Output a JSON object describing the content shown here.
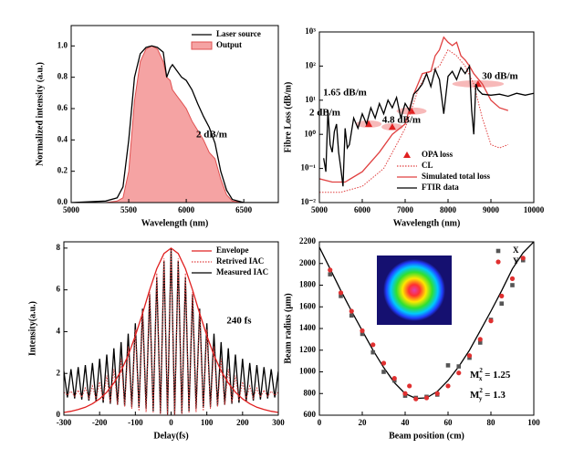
{
  "chart_data": [
    {
      "type": "line",
      "xlabel": "Wavelength (nm)",
      "ylabel": "Normalized intensity (a.u.)",
      "xlim": [
        5000,
        6800
      ],
      "ylim": [
        0,
        1.13
      ],
      "xticks": [
        5000,
        5500,
        6000,
        6500
      ],
      "yticks": [
        {
          "value": 0,
          "label": "0.0"
        },
        0.2,
        0.4,
        0.6,
        0.8,
        {
          "value": 1,
          "label": "1.0"
        }
      ],
      "legend": "upper right",
      "series": [
        {
          "name": "Output",
          "color": "#e05050",
          "style": "area",
          "x": [
            5000,
            5300,
            5400,
            5450,
            5500,
            5550,
            5600,
            5650,
            5700,
            5750,
            5800,
            5830,
            5860,
            5880,
            5920,
            5960,
            6000,
            6050,
            6100,
            6150,
            6200,
            6250,
            6300,
            6350,
            6400,
            6500,
            6800
          ],
          "values": [
            0,
            0,
            0.01,
            0.03,
            0.2,
            0.65,
            0.9,
            0.98,
            1.0,
            0.98,
            0.9,
            0.8,
            0.78,
            0.72,
            0.68,
            0.64,
            0.6,
            0.52,
            0.46,
            0.4,
            0.32,
            0.28,
            0.15,
            0.05,
            0.01,
            0,
            0
          ]
        },
        {
          "name": "Laser source",
          "color": "#000000",
          "style": "solid",
          "x": [
            5000,
            5300,
            5400,
            5450,
            5500,
            5550,
            5600,
            5650,
            5700,
            5750,
            5800,
            5830,
            5860,
            5880,
            5920,
            5960,
            6000,
            6050,
            6100,
            6150,
            6200,
            6250,
            6300,
            6350,
            6400,
            6500,
            6800
          ],
          "values": [
            0,
            0.01,
            0.03,
            0.1,
            0.4,
            0.8,
            0.95,
            0.99,
            1.0,
            0.99,
            0.96,
            0.8,
            0.86,
            0.88,
            0.84,
            0.8,
            0.78,
            0.72,
            0.63,
            0.55,
            0.48,
            0.38,
            0.2,
            0.08,
            0.02,
            0,
            0
          ]
        }
      ],
      "annotations": [
        "2 dB/m"
      ]
    },
    {
      "type": "line",
      "xlabel": "Wavelength (nm)",
      "ylabel": "Fibre Loss (dB/m)",
      "log_y": true,
      "xlim": [
        5000,
        10000
      ],
      "ylim": [
        0.01,
        1000
      ],
      "xticks": [
        5000,
        6000,
        7000,
        8000,
        9000,
        10000
      ],
      "yticks": [
        {
          "value": 0.01,
          "label": "10⁻²"
        },
        {
          "value": 0.1,
          "label": "10⁻¹"
        },
        {
          "value": 1,
          "label": "10⁰"
        },
        {
          "value": 10,
          "label": "10¹"
        },
        {
          "value": 100,
          "label": "10²"
        },
        {
          "value": 1000,
          "label": "10³"
        }
      ],
      "legend": "lower right",
      "series": [
        {
          "name": "OPA loss",
          "color": "#e02020",
          "style": "triangle",
          "x": [
            6150,
            6700,
            7150,
            8700
          ],
          "values": [
            2,
            1.65,
            4.8,
            30
          ],
          "xerr": [
            300,
            250,
            350,
            600
          ]
        },
        {
          "name": "CL",
          "color": "#e04040",
          "style": "dotted",
          "x": [
            5000,
            5500,
            6000,
            6500,
            6800,
            7000,
            7300,
            7500,
            7800,
            8000,
            8200,
            8400,
            8600,
            8800,
            9000,
            9200,
            9400
          ],
          "values": [
            0.02,
            0.02,
            0.03,
            0.1,
            0.5,
            1.5,
            20,
            60,
            100,
            300,
            200,
            100,
            30,
            3,
            0.5,
            0.4,
            0.5
          ]
        },
        {
          "name": "Simulated total loss",
          "color": "#e04040",
          "style": "solid",
          "x": [
            5000,
            5300,
            5600,
            6000,
            6400,
            6700,
            7000,
            7200,
            7400,
            7600,
            7700,
            7800,
            7900,
            8000,
            8100,
            8200,
            8300,
            8400,
            8500,
            8600,
            8800,
            9000,
            9200,
            9400
          ],
          "values": [
            0.05,
            0.04,
            0.04,
            0.08,
            0.3,
            1,
            2,
            15,
            60,
            70,
            200,
            300,
            700,
            500,
            400,
            500,
            200,
            150,
            100,
            60,
            30,
            10,
            6,
            5
          ]
        },
        {
          "name": "FTIR data",
          "color": "#000000",
          "style": "solid",
          "x": [
            5100,
            5150,
            5200,
            5250,
            5300,
            5350,
            5400,
            5450,
            5500,
            5550,
            5600,
            5650,
            5700,
            5800,
            5900,
            6000,
            6100,
            6200,
            6300,
            6400,
            6500,
            6600,
            6700,
            6800,
            6900,
            7000,
            7100,
            7200,
            7300,
            7400,
            7500,
            7600,
            7700,
            7800,
            7900,
            8000,
            8100,
            8200,
            8300,
            8400,
            8500,
            8550,
            8600,
            8650,
            8700,
            8800,
            9000,
            9200,
            9400,
            9600,
            9800,
            10000
          ],
          "values": [
            0.2,
            0.08,
            5,
            0.5,
            0.3,
            1.2,
            2,
            0.3,
            0.1,
            0.03,
            1.5,
            0.4,
            0.5,
            3,
            1.5,
            4,
            2,
            6,
            3,
            8,
            4,
            10,
            6,
            12,
            3,
            8,
            5,
            15,
            20,
            30,
            60,
            25,
            80,
            40,
            4,
            50,
            70,
            40,
            90,
            60,
            100,
            5,
            1,
            30,
            20,
            15,
            14,
            15,
            13,
            16,
            14,
            16
          ]
        }
      ],
      "annotations": [
        "30 dB/m",
        "1.65 dB/m",
        "2 dB/m",
        "4.8 dB/m"
      ]
    },
    {
      "type": "line",
      "xlabel": "Delay(fs)",
      "ylabel": "Intensity(a.u.)",
      "xlim": [
        -300,
        300
      ],
      "ylim": [
        0,
        8.3
      ],
      "xticks": [
        -300,
        -200,
        -100,
        0,
        100,
        200,
        300
      ],
      "yticks": [
        0,
        2,
        4,
        6,
        8
      ],
      "legend": "upper right",
      "series": [
        {
          "name": "Measured IAC",
          "color": "#000000",
          "style": "solid",
          "x": [
            -300,
            -290,
            -280,
            -270,
            -260,
            -250,
            -240,
            -230,
            -220,
            -210,
            -200,
            -190,
            -180,
            -170,
            -160,
            -150,
            -140,
            -130,
            -120,
            -110,
            -100,
            -90,
            -80,
            -70,
            -60,
            -50,
            -40,
            -30,
            -20,
            -10,
            0,
            10,
            20,
            30,
            40,
            50,
            60,
            70,
            80,
            90,
            100,
            110,
            120,
            130,
            140,
            150,
            160,
            170,
            180,
            190,
            200,
            210,
            220,
            230,
            240,
            250,
            260,
            270,
            280,
            290,
            300
          ],
          "values": [
            2.1,
            0.85,
            2.2,
            0.8,
            2.3,
            0.75,
            2.4,
            0.7,
            2.5,
            0.65,
            2.7,
            0.6,
            2.9,
            0.55,
            3.2,
            0.5,
            3.5,
            0.45,
            3.9,
            0.4,
            4.4,
            0.35,
            5.1,
            0.3,
            5.8,
            0.2,
            6.6,
            0.1,
            7.4,
            0.05,
            8,
            0.05,
            7.4,
            0.1,
            6.6,
            0.2,
            5.8,
            0.3,
            5.1,
            0.35,
            4.4,
            0.4,
            3.9,
            0.45,
            3.5,
            0.5,
            3.2,
            0.55,
            2.9,
            0.6,
            2.7,
            0.65,
            2.5,
            0.7,
            2.4,
            0.75,
            2.3,
            0.8,
            2.2,
            0.85,
            2.1
          ]
        },
        {
          "name": "Retrived IAC",
          "color": "#e04040",
          "style": "dotted",
          "x": [
            -300,
            -290,
            -280,
            -270,
            -260,
            -250,
            -240,
            -230,
            -220,
            -210,
            -200,
            -190,
            -180,
            -170,
            -160,
            -150,
            -140,
            -130,
            -120,
            -110,
            -100,
            -90,
            -80,
            -70,
            -60,
            -50,
            -40,
            -30,
            -20,
            -10,
            0,
            10,
            20,
            30,
            40,
            50,
            60,
            70,
            80,
            90,
            100,
            110,
            120,
            130,
            140,
            150,
            160,
            170,
            180,
            190,
            200,
            210,
            220,
            230,
            240,
            250,
            260,
            270,
            280,
            290,
            300
          ],
          "values": [
            1.1,
            0.95,
            1.15,
            0.9,
            1.2,
            0.85,
            1.3,
            0.8,
            1.4,
            0.75,
            1.6,
            0.7,
            1.9,
            0.6,
            2.2,
            0.5,
            2.7,
            0.4,
            3.3,
            0.3,
            4.1,
            0.2,
            5.0,
            0.15,
            5.9,
            0.1,
            6.8,
            0.05,
            7.5,
            0.02,
            8,
            0.02,
            7.5,
            0.05,
            6.8,
            0.1,
            5.9,
            0.15,
            5.0,
            0.2,
            4.1,
            0.3,
            3.3,
            0.4,
            2.7,
            0.5,
            2.2,
            0.6,
            1.9,
            0.7,
            1.6,
            0.75,
            1.4,
            0.8,
            1.3,
            0.85,
            1.2,
            0.9,
            1.15,
            0.95,
            1.1
          ]
        },
        {
          "name": "Envelope",
          "color": "#e02020",
          "style": "solid",
          "x": [
            -300,
            -280,
            -260,
            -240,
            -220,
            -200,
            -180,
            -160,
            -140,
            -120,
            -100,
            -80,
            -60,
            -40,
            -20,
            0,
            20,
            40,
            60,
            80,
            100,
            120,
            140,
            160,
            180,
            200,
            220,
            240,
            260,
            280,
            300
          ],
          "values": [
            0.13,
            0.19,
            0.27,
            0.38,
            0.55,
            0.78,
            1.1,
            1.54,
            2.12,
            2.87,
            3.8,
            4.87,
            6.0,
            7.01,
            7.74,
            8,
            7.74,
            7.01,
            6.0,
            4.87,
            3.8,
            2.87,
            2.12,
            1.54,
            1.1,
            0.78,
            0.55,
            0.38,
            0.27,
            0.19,
            0.13
          ]
        }
      ],
      "annotations": [
        "240 fs"
      ]
    },
    {
      "type": "scatter",
      "xlabel": "Beam position (cm)",
      "ylabel": "Beam radius (μm)",
      "xlim": [
        0,
        100
      ],
      "ylim": [
        600,
        2200
      ],
      "xticks": [
        0,
        20,
        40,
        60,
        80,
        100
      ],
      "yticks": [
        600,
        800,
        1000,
        1200,
        1400,
        1600,
        1800,
        2000,
        2200
      ],
      "legend": "upper right",
      "series": [
        {
          "color": "#000000",
          "style": "solid",
          "x": [
            0,
            5,
            10,
            15,
            20,
            25,
            30,
            35,
            40,
            45,
            50,
            55,
            60,
            65,
            70,
            75,
            80,
            85,
            90,
            95,
            100
          ],
          "values": [
            2150,
            1950,
            1750,
            1560,
            1380,
            1200,
            1040,
            900,
            800,
            755,
            760,
            820,
            920,
            1050,
            1200,
            1380,
            1560,
            1750,
            1950,
            2100,
            2200
          ]
        },
        {
          "name": "X",
          "color": "#555555",
          "style": "square",
          "x": [
            5,
            10,
            15,
            20,
            25,
            30,
            35,
            40,
            45,
            50,
            55,
            60,
            65,
            70,
            75,
            80,
            85,
            90,
            95
          ],
          "values": [
            1900,
            1700,
            1520,
            1350,
            1180,
            1000,
            920,
            780,
            760,
            770,
            790,
            1060,
            1050,
            1130,
            1270,
            1480,
            1630,
            1800,
            2030
          ]
        },
        {
          "name": "Y",
          "color": "#e03030",
          "style": "circle",
          "x": [
            5,
            10,
            15,
            20,
            25,
            30,
            35,
            40,
            42,
            45,
            50,
            55,
            60,
            65,
            70,
            75,
            80,
            85,
            90,
            95
          ],
          "values": [
            1940,
            1730,
            1560,
            1380,
            1250,
            1080,
            940,
            800,
            870,
            750,
            760,
            800,
            870,
            990,
            1150,
            1300,
            1470,
            1700,
            1860,
            2050
          ]
        }
      ],
      "annotations": [
        {
          "base": "M",
          "sup": "2",
          "sub": "x",
          "text": " = 1.25"
        },
        {
          "base": "M",
          "sup": "2",
          "sub": "y",
          "text": " = 1.3"
        }
      ]
    }
  ]
}
